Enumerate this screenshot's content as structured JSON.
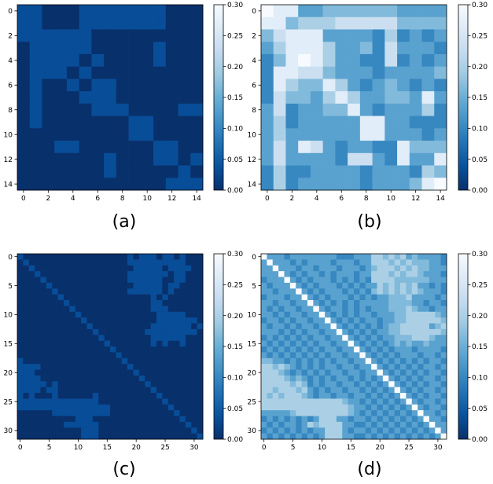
{
  "colormap": {
    "name": "Blues_r",
    "stops": [
      "#08306b",
      "#08519c",
      "#2171b5",
      "#4292c6",
      "#6baed6",
      "#9ecae1",
      "#c6dbef",
      "#deebf7",
      "#f7fbff"
    ]
  },
  "chart_data": [
    {
      "type": "heatmap",
      "caption": "(a)",
      "n": 15,
      "vmin": 0,
      "vmax": 0.3,
      "xticks": [
        0,
        2,
        4,
        6,
        8,
        10,
        12,
        14
      ],
      "yticks": [
        0,
        2,
        4,
        6,
        8,
        10,
        12,
        14
      ],
      "colorbar_ticks": [
        "0.00",
        "0.05",
        "0.10",
        "0.15",
        "0.20",
        "0.25",
        "0.30"
      ],
      "rows": [
        "110001111111000",
        "110001111111000",
        "111111000000000",
        "011111000001000",
        "011110100001000",
        "011101000000000",
        "010010110000000",
        "010001110000000",
        "010000111000011",
        "010000000110000",
        "000000000110000",
        "000110000001100",
        "000000010001101",
        "000000010000010",
        "000000000000111"
      ]
    },
    {
      "type": "heatmap",
      "caption": "(b)",
      "n": 15,
      "vmin": 0,
      "vmax": 0.3,
      "xticks": [
        0,
        2,
        4,
        6,
        8,
        10,
        12,
        14
      ],
      "yticks": [
        0,
        2,
        4,
        6,
        8,
        10,
        12,
        14
      ],
      "colorbar_ticks": [
        "0.00",
        "0.05",
        "0.10",
        "0.15",
        "0.20",
        "0.25",
        "0.30"
      ],
      "rows": [
        "988445555554444",
        "885666777775555",
        "578884444363434",
        "468886445374443",
        "358986443373434",
        "388775444344445",
        "386558643454343",
        "375546864455484",
        "473445584344463",
        "463444448844333",
        "464444448844434",
        "474874344338555",
        "474444377438448",
        "363344443444365",
        "363444443444589"
      ]
    },
    {
      "type": "heatmap",
      "caption": "(c)",
      "n": 32,
      "vmin": 0,
      "vmax": 0.3,
      "xticks": [
        0,
        5,
        10,
        15,
        20,
        25,
        30
      ],
      "yticks": [
        0,
        5,
        10,
        15,
        20,
        25,
        30
      ],
      "colorbar_ticks": [
        "0.00",
        "0.05",
        "0.10",
        "0.15",
        "0.20",
        "0.25",
        "0.30"
      ],
      "rows": [
        "10000000000000000001011101101000",
        "01000000000000000001111111111000",
        "00100000000000000000111110111100",
        "00010000000000000001111111011000",
        "00001000000000000001111110011000",
        "00000100000000000000111110110000",
        "00000010000000000001111110100000",
        "00000001000000000000000101000000",
        "00000000100000000000000110000000",
        "00000000010000000000000111000000",
        "00000000001000000000000011111000",
        "00000000000100000000000011111110",
        "00000000000010000000000111111101",
        "00000000000001000000001111111110",
        "00000000000000100000000111111000",
        "00000000000000010000000101001000",
        "00000000000000001000000000000000",
        "00000000000000000100000000000000",
        "10000000000000000010000000000000",
        "11110000000000000001000000000000",
        "11100000000000000000100000000000",
        "11110000000000000000010000000000",
        "11111010000000000000001000000000",
        "11110110000000000000000100000000",
        "10100010000001000000000010000000",
        "11111111111111000000000001000000",
        "11111111111111110000000000100000",
        "00000011111111110000000000010000",
        "00000000001110000000000000001000",
        "00000000111111000000000000000100",
        "00000000000111000000000000000010",
        "00000000000111000000000000000001"
      ]
    },
    {
      "type": "heatmap",
      "caption": "(d)",
      "n": 32,
      "vmin": 0,
      "vmax": 0.3,
      "xticks": [
        0,
        5,
        10,
        15,
        20,
        25,
        30
      ],
      "yticks": [
        0,
        5,
        10,
        15,
        20,
        25,
        30
      ],
      "colorbar_ticks": [
        "0.00",
        "0.05",
        "0.10",
        "0.15",
        "0.20",
        "0.25",
        "0.30"
      ],
      "rows": [
        "94443444444443334446656564544443",
        "49444343444434443446665656555443",
        "44944434434443444345666565655444",
        "44494343443434443446665656654443",
        "34449434344434343436666555555444",
        "43444943434443434344656565644343",
        "44344494343444343435656565654443",
        "34443449434344434343445556444434",
        "44344344943434343444445555443443",
        "43434434494344343434445556544344",
        "44343443449434343443444556666654",
        "34434344344943434344344556666665",
        "43443434434494343434345566666456",
        "44434343443449434343445566666665",
        "34343434344344943434344555666544",
        "43434343434434494343434545445444",
        "34343434343443449434343444344443",
        "43434343434344344943434344434434",
        "55443434343434434494343434343443",
        "66565434343443443449434343434434",
        "66654343434344344344943434343443",
        "66665454343434434343494343434434",
        "66666565343443443434349434343443",
        "66566656434344344343434943434434",
        "65656665434434434434343494343443",
        "66666666666666544343434349434434",
        "66666666666666654434343434943443",
        "44444566666666654343434343494434",
        "34343434346664434434343434349443",
        "43434434656666443343434343434944",
        "34343434344666434434343434343494",
        "43434343434666443343434343434349"
      ]
    }
  ]
}
